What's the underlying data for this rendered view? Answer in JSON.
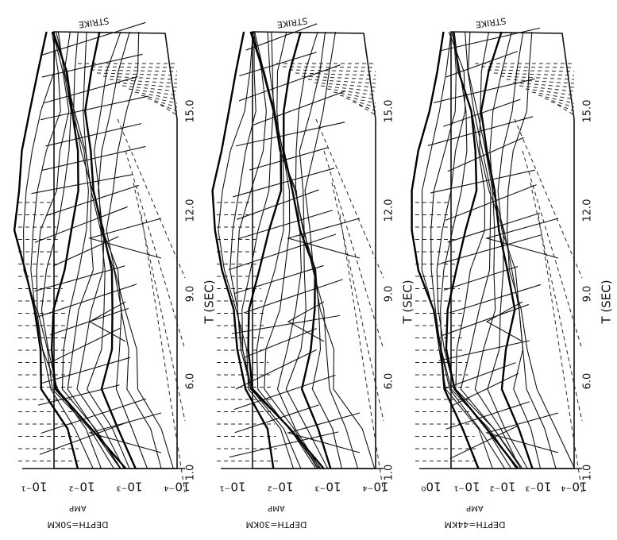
{
  "panels": [
    {
      "depth_label": "DEPTH=50KM",
      "amp_label": "AMP",
      "amp_ticks": [
        "10⁻¹",
        "10⁻²",
        "10⁻³",
        "10⁻⁴"
      ],
      "t_label": "T (SEC)",
      "t_ticks": [
        "1.0",
        "6.0",
        "9.0",
        "12.0",
        "15.0"
      ],
      "strike_label": "STRIKE"
    },
    {
      "depth_label": "DEPTH=30KM",
      "amp_label": "AMP",
      "amp_ticks": [
        "10⁻¹",
        "10⁻²",
        "10⁻³",
        "10⁻⁴"
      ],
      "t_label": "T (SEC)",
      "t_ticks": [
        "1.0",
        "6.0",
        "9.0",
        "12.0",
        "15.0"
      ],
      "strike_label": "STRIKE"
    },
    {
      "depth_label": "DEPTH=44KM",
      "amp_label": "AMP",
      "amp_ticks": [
        "10⁰",
        "10⁻¹",
        "10⁻²",
        "10⁻³",
        "10⁻⁴"
      ],
      "t_label": "T (SEC)",
      "t_ticks": [
        "1.0",
        "6.0",
        "9.0",
        "12.0",
        "15.0"
      ],
      "strike_label": "STRIKE"
    }
  ]
}
